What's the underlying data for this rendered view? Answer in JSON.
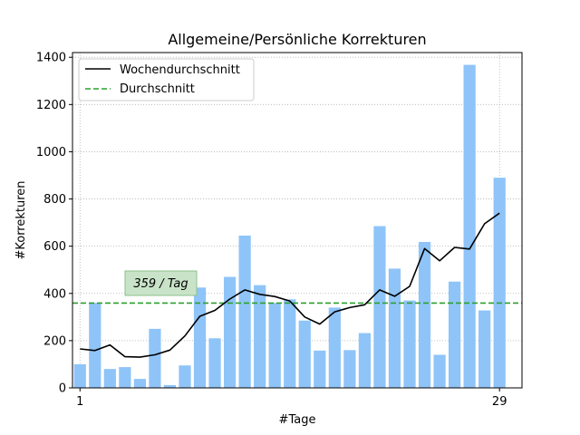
{
  "chart_data": {
    "type": "bar",
    "title": "Allgemeine/Persönliche Korrekturen",
    "xlabel": "#Tage",
    "ylabel": "#Korrekturen",
    "x": [
      1,
      2,
      3,
      4,
      5,
      6,
      7,
      8,
      9,
      10,
      11,
      12,
      13,
      14,
      15,
      16,
      17,
      18,
      19,
      20,
      21,
      22,
      23,
      24,
      25,
      26,
      27,
      28,
      29
    ],
    "xlim": [
      0.5,
      30.5
    ],
    "ylim": [
      0,
      1420
    ],
    "x_ticks": [
      1,
      29
    ],
    "y_ticks": [
      0,
      200,
      400,
      600,
      800,
      1000,
      1200,
      1400
    ],
    "grid": true,
    "legend_position": "top-left",
    "colors": {
      "bars": "#8fc4f8",
      "weekly_line": "#000000",
      "average_line": "#2ca02c",
      "annotation_bg": "#c9e3c9",
      "annotation_border": "#8cc08c"
    },
    "series": [
      {
        "name": "",
        "kind": "bar",
        "values": [
          100,
          360,
          80,
          88,
          38,
          250,
          12,
          95,
          425,
          210,
          470,
          645,
          435,
          360,
          375,
          285,
          158,
          340,
          160,
          232,
          685,
          505,
          370,
          618,
          140,
          450,
          1368,
          328,
          890
        ]
      },
      {
        "name": "Wochendurchschnitt",
        "kind": "line",
        "values": [
          165,
          158,
          182,
          132,
          130,
          140,
          160,
          220,
          303,
          328,
          376,
          415,
          396,
          387,
          368,
          300,
          270,
          322,
          340,
          352,
          415,
          388,
          430,
          590,
          538,
          595,
          588,
          695,
          740
        ]
      },
      {
        "name": "Durchschnitt",
        "kind": "hline",
        "value": 359
      }
    ],
    "annotation": {
      "text": "359 / Tag",
      "x": 5.5,
      "y": 445
    }
  }
}
